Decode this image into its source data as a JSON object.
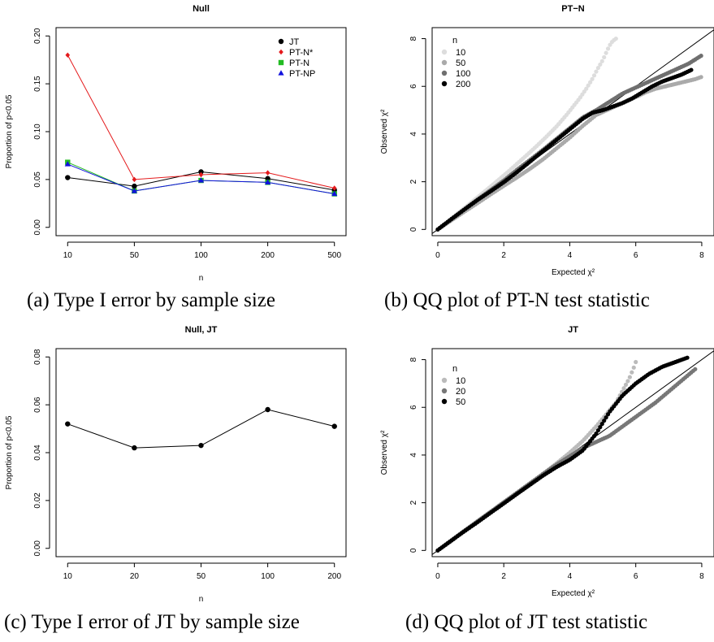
{
  "captions": {
    "a": "(a) Type I error by sample size",
    "b": "(b) QQ plot of PT-N test statistic",
    "c": "(c) Type I error of JT by sample size",
    "d": "(d) QQ plot of JT test statistic"
  },
  "chart_data": [
    {
      "id": "a",
      "type": "line",
      "title": "Null",
      "xlabel": "n",
      "ylabel": "Proportion of p<0.05",
      "categories": [
        "10",
        "50",
        "100",
        "200",
        "500"
      ],
      "ylim": [
        0,
        0.2
      ],
      "yticks": [
        "0.00",
        "0.05",
        "0.10",
        "0.15",
        "0.20"
      ],
      "legend_position": "top-right",
      "series": [
        {
          "name": "JT",
          "color": "#000000",
          "marker": "circle",
          "values": [
            0.052,
            0.043,
            0.058,
            0.051,
            0.039
          ]
        },
        {
          "name": "PT-N*",
          "color": "#e41a1c",
          "marker": "diamond",
          "values": [
            0.18,
            0.05,
            0.055,
            0.057,
            0.041
          ]
        },
        {
          "name": "PT-N",
          "color": "#22bb22",
          "marker": "square",
          "values": [
            0.068,
            0.038,
            0.049,
            0.047,
            0.035
          ]
        },
        {
          "name": "PT-NP",
          "color": "#1111dd",
          "marker": "triangle",
          "values": [
            0.066,
            0.038,
            0.049,
            0.047,
            0.035
          ]
        }
      ]
    },
    {
      "id": "b",
      "type": "scatter",
      "title": "PT−N",
      "xlabel": "Expected χ²",
      "ylabel": "Observed χ²",
      "xlim": [
        0,
        8.2
      ],
      "ylim": [
        0,
        8.2
      ],
      "xticks": [
        "0",
        "2",
        "4",
        "6",
        "8"
      ],
      "yticks": [
        "0",
        "2",
        "4",
        "6",
        "8"
      ],
      "reference_line": "y = x",
      "legend_title": "n",
      "legend_position": "top-left",
      "series": [
        {
          "name": "10",
          "color": "#dddddd",
          "x": [
            0,
            0.3,
            0.6,
            0.9,
            1.2,
            1.5,
            1.8,
            2.1,
            2.4,
            2.7,
            3.0,
            3.3,
            3.6,
            3.9,
            4.1,
            4.3,
            4.5,
            4.7,
            4.85,
            5.0,
            5.1,
            5.2,
            5.3,
            5.4
          ],
          "y": [
            0,
            0.33,
            0.67,
            1.0,
            1.34,
            1.68,
            2.03,
            2.38,
            2.75,
            3.12,
            3.5,
            3.9,
            4.32,
            4.8,
            5.15,
            5.5,
            5.9,
            6.35,
            6.75,
            7.1,
            7.4,
            7.7,
            7.9,
            8.0
          ]
        },
        {
          "name": "50",
          "color": "#aaaaaa",
          "x": [
            0,
            0.4,
            0.8,
            1.2,
            1.6,
            2.0,
            2.4,
            2.8,
            3.2,
            3.6,
            4.0,
            4.4,
            4.8,
            5.2,
            5.6,
            6.0,
            6.3,
            6.6,
            6.9,
            7.2,
            7.5,
            7.8,
            8.0
          ],
          "y": [
            0,
            0.37,
            0.74,
            1.1,
            1.47,
            1.83,
            2.18,
            2.55,
            2.95,
            3.4,
            3.85,
            4.35,
            4.8,
            5.05,
            5.3,
            5.55,
            5.75,
            5.9,
            6.0,
            6.1,
            6.2,
            6.3,
            6.4
          ]
        },
        {
          "name": "100",
          "color": "#6f6f6f",
          "x": [
            0,
            0.4,
            0.8,
            1.2,
            1.6,
            2.0,
            2.4,
            2.8,
            3.2,
            3.6,
            4.0,
            4.4,
            4.8,
            5.2,
            5.6,
            6.0,
            6.4,
            6.8,
            7.2,
            7.6,
            8.0
          ],
          "y": [
            0,
            0.42,
            0.84,
            1.25,
            1.65,
            2.05,
            2.5,
            2.92,
            3.35,
            3.8,
            4.25,
            4.7,
            5.0,
            5.35,
            5.7,
            5.95,
            6.2,
            6.45,
            6.7,
            6.95,
            7.3
          ]
        },
        {
          "name": "200",
          "color": "#000000",
          "x": [
            0,
            0.4,
            0.8,
            1.2,
            1.6,
            2.0,
            2.4,
            2.8,
            3.2,
            3.6,
            4.0,
            4.4,
            4.7,
            5.0,
            5.3,
            5.6,
            5.9,
            6.2,
            6.5,
            6.8,
            7.1,
            7.4,
            7.7
          ],
          "y": [
            0,
            0.42,
            0.83,
            1.23,
            1.6,
            1.98,
            2.4,
            2.85,
            3.3,
            3.75,
            4.2,
            4.65,
            4.9,
            5.0,
            5.15,
            5.3,
            5.5,
            5.75,
            6.0,
            6.2,
            6.35,
            6.5,
            6.7
          ]
        }
      ]
    },
    {
      "id": "c",
      "type": "line",
      "title": "Null, JT",
      "xlabel": "n",
      "ylabel": "Proportion of p<0.05",
      "categories": [
        "10",
        "20",
        "50",
        "100",
        "200"
      ],
      "ylim": [
        0,
        0.08
      ],
      "yticks": [
        "0.00",
        "0.02",
        "0.04",
        "0.06",
        "0.08"
      ],
      "series": [
        {
          "color": "#000000",
          "marker": "circle",
          "values": [
            0.052,
            0.042,
            0.043,
            0.058,
            0.051
          ]
        }
      ]
    },
    {
      "id": "d",
      "type": "scatter",
      "title": "JT",
      "xlabel": "Expected χ²",
      "ylabel": "Observed χ²",
      "xlim": [
        0,
        8.2
      ],
      "ylim": [
        0,
        8.2
      ],
      "xticks": [
        "0",
        "2",
        "4",
        "6",
        "8"
      ],
      "yticks": [
        "0",
        "2",
        "4",
        "6",
        "8"
      ],
      "reference_line": "y = x",
      "legend_title": "n",
      "legend_position": "top-left",
      "series": [
        {
          "name": "10",
          "color": "#bbbbbb",
          "x": [
            0,
            0.4,
            0.8,
            1.2,
            1.6,
            2.0,
            2.4,
            2.8,
            3.2,
            3.6,
            4.0,
            4.4,
            4.8,
            5.1,
            5.4,
            5.6,
            5.8,
            5.95,
            6.05
          ],
          "y": [
            0,
            0.4,
            0.8,
            1.2,
            1.6,
            2.0,
            2.4,
            2.8,
            3.22,
            3.65,
            4.1,
            4.6,
            5.2,
            5.7,
            6.2,
            6.7,
            7.2,
            7.7,
            8.1
          ]
        },
        {
          "name": "20",
          "color": "#777777",
          "x": [
            0,
            0.4,
            0.8,
            1.2,
            1.6,
            2.0,
            2.4,
            2.8,
            3.2,
            3.6,
            4.0,
            4.4,
            4.8,
            5.2,
            5.6,
            6.0,
            6.6,
            7.2,
            7.8
          ],
          "y": [
            0,
            0.41,
            0.82,
            1.22,
            1.62,
            2.02,
            2.42,
            2.82,
            3.22,
            3.6,
            3.95,
            4.3,
            4.55,
            4.8,
            5.2,
            5.6,
            6.2,
            6.9,
            7.6
          ]
        },
        {
          "name": "50",
          "color": "#000000",
          "x": [
            0,
            0.4,
            0.8,
            1.2,
            1.6,
            2.0,
            2.4,
            2.8,
            3.2,
            3.6,
            4.0,
            4.4,
            4.8,
            5.2,
            5.6,
            6.0,
            6.4,
            6.8,
            7.2,
            7.6
          ],
          "y": [
            0,
            0.4,
            0.8,
            1.18,
            1.58,
            1.97,
            2.37,
            2.76,
            3.15,
            3.5,
            3.8,
            4.2,
            4.9,
            5.8,
            6.5,
            7.0,
            7.4,
            7.7,
            7.9,
            8.1
          ]
        }
      ]
    }
  ]
}
